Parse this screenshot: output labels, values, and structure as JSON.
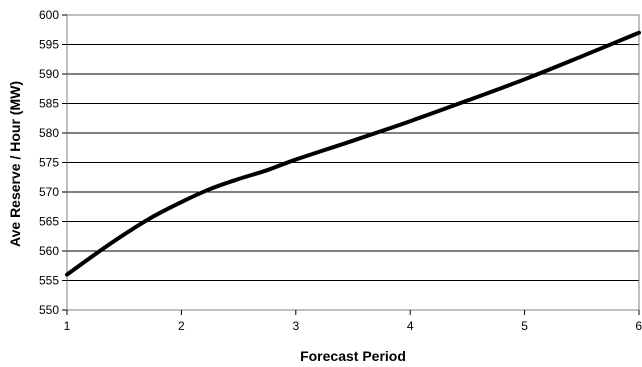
{
  "chart_data": {
    "type": "line",
    "title": "",
    "xlabel": "Forecast Period",
    "ylabel": "Ave Reserve / Hour (MW)",
    "x": [
      1,
      1.25,
      1.5,
      1.75,
      2,
      2.25,
      2.5,
      2.75,
      3,
      3.5,
      4,
      4.5,
      5,
      5.5,
      6
    ],
    "series": [
      {
        "values": [
          556,
          559.5,
          562.8,
          565.8,
          568.3,
          570.5,
          572.2,
          573.7,
          575.5,
          578.7,
          582.0,
          585.5,
          589.1,
          593.0,
          597.0
        ]
      }
    ],
    "xticks": [
      1,
      2,
      3,
      4,
      5,
      6
    ],
    "yticks": [
      550,
      555,
      560,
      565,
      570,
      575,
      580,
      585,
      590,
      595,
      600
    ],
    "xlim": [
      1,
      6
    ],
    "ylim": [
      550,
      600
    ],
    "grid": "horizontal",
    "colors": {
      "line": "#000000",
      "grid": "#000000",
      "frame": "#808080"
    }
  }
}
